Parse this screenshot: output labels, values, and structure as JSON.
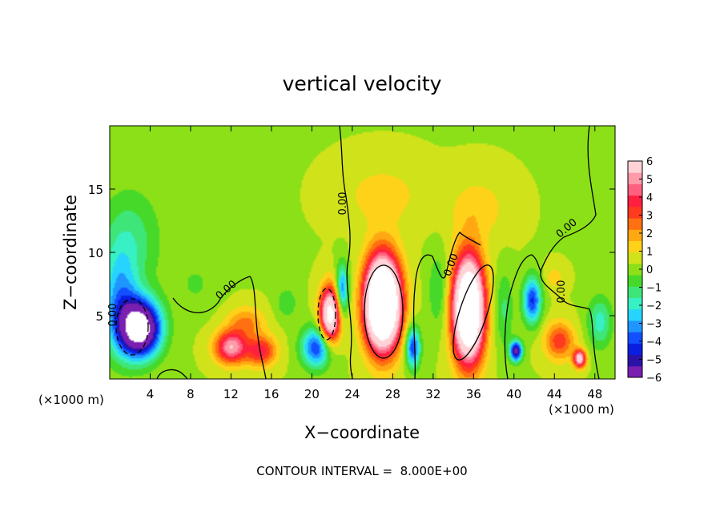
{
  "chart_data": {
    "type": "heatmap",
    "title": "vertical velocity",
    "xlabel": "X−coordinate",
    "ylabel": "Z−coordinate",
    "x_unit_left": "(×1000 m)",
    "x_unit_right": "(×1000 m)",
    "xlim": [
      0,
      50
    ],
    "ylim": [
      0,
      20
    ],
    "x_ticks": [
      4,
      8,
      12,
      16,
      20,
      24,
      28,
      32,
      36,
      40,
      44,
      48
    ],
    "x_tick_labels": [
      "4",
      "8",
      "12",
      "16",
      "20",
      "24",
      "28",
      "32",
      "36",
      "40",
      "44",
      "48"
    ],
    "y_ticks": [
      5,
      10,
      15
    ],
    "y_tick_labels": [
      "5",
      "10",
      "15"
    ],
    "colorbar": {
      "min": -6,
      "max": 6,
      "ticks": [
        6,
        5,
        4,
        3,
        2,
        1,
        0,
        -1,
        -2,
        -3,
        -4,
        -5,
        -6
      ],
      "tick_labels": [
        "6",
        "5",
        "4",
        "3",
        "2",
        "1",
        "0",
        "−1",
        "−2",
        "−3",
        "−4",
        "−5",
        "−6"
      ]
    },
    "contour_labels": [
      "0.00",
      "0.00",
      "0.00",
      "0.00",
      "0.00",
      "0.00"
    ],
    "footer": "CONTOUR INTERVAL =  8.000E+00",
    "features": [
      {
        "x": 3.0,
        "z": 4.0,
        "sx": 2.0,
        "sz": 2.2,
        "w": -9
      },
      {
        "x": 1.0,
        "z": 6.0,
        "sx": 1.8,
        "sz": 4.0,
        "w": -3
      },
      {
        "x": 2.0,
        "z": 11.0,
        "sx": 3.0,
        "sz": 4.0,
        "w": -1.6
      },
      {
        "x": 8.5,
        "z": 7.5,
        "sx": 2.0,
        "sz": 2.0,
        "w": -0.7
      },
      {
        "x": 12.0,
        "z": 2.5,
        "sx": 1.6,
        "sz": 1.3,
        "w": 5
      },
      {
        "x": 15.0,
        "z": 2.2,
        "sx": 1.5,
        "sz": 1.2,
        "w": 3.5
      },
      {
        "x": 13.5,
        "z": 4.5,
        "sx": 1.8,
        "sz": 1.2,
        "w": 2.0
      },
      {
        "x": 17.5,
        "z": 6.0,
        "sx": 1.0,
        "sz": 1.2,
        "w": -1.2
      },
      {
        "x": 20.5,
        "z": 2.5,
        "sx": 1.5,
        "sz": 1.6,
        "w": -4.5
      },
      {
        "x": 21.8,
        "z": 5.0,
        "sx": 1.0,
        "sz": 2.2,
        "w": 8
      },
      {
        "x": 23.0,
        "z": 7.0,
        "sx": 0.6,
        "sz": 2.0,
        "w": -4
      },
      {
        "x": 27.0,
        "z": 6.0,
        "sx": 1.7,
        "sz": 3.5,
        "w": 14
      },
      {
        "x": 27.0,
        "z": 14.5,
        "sx": 4.0,
        "sz": 2.5,
        "w": 1.0
      },
      {
        "x": 30.0,
        "z": 2.5,
        "sx": 0.7,
        "sz": 1.6,
        "w": -4.5
      },
      {
        "x": 32.5,
        "z": 7.0,
        "sx": 1.0,
        "sz": 3.0,
        "w": -1.3
      },
      {
        "x": 35.5,
        "z": 5.5,
        "sx": 1.5,
        "sz": 4.0,
        "w": 12
      },
      {
        "x": 36.5,
        "z": 13.5,
        "sx": 3.0,
        "sz": 2.5,
        "w": 1.0
      },
      {
        "x": 39.0,
        "z": 5.5,
        "sx": 0.9,
        "sz": 3.0,
        "w": -1.4
      },
      {
        "x": 40.2,
        "z": 2.2,
        "sx": 0.6,
        "sz": 0.8,
        "w": -6
      },
      {
        "x": 41.8,
        "z": 6.2,
        "sx": 0.9,
        "sz": 1.8,
        "w": -4.5
      },
      {
        "x": 44.5,
        "z": 3.0,
        "sx": 1.5,
        "sz": 1.5,
        "w": 3
      },
      {
        "x": 46.5,
        "z": 1.6,
        "sx": 0.6,
        "sz": 0.7,
        "w": 6
      },
      {
        "x": 48.5,
        "z": 4.5,
        "sx": 1.2,
        "sz": 2.0,
        "w": -2.2
      },
      {
        "x": 44.0,
        "z": 8.0,
        "sx": 1.0,
        "sz": 1.0,
        "w": 1.0
      }
    ]
  }
}
